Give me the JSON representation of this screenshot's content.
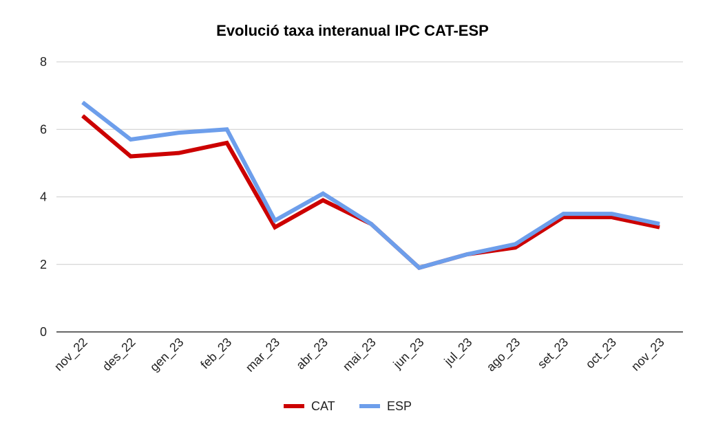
{
  "chart_data": {
    "type": "line",
    "title": "Evolució taxa interanual IPC CAT-ESP",
    "categories": [
      "nov_22",
      "des_22",
      "gen_23",
      "feb_23",
      "mar_23",
      "abr_23",
      "mai_23",
      "jun_23",
      "jul_23",
      "ago_23",
      "set_23",
      "oct_23",
      "nov_23"
    ],
    "series": [
      {
        "name": "CAT",
        "color": "#cc0000",
        "values": [
          6.4,
          5.2,
          5.3,
          5.6,
          3.1,
          3.9,
          3.2,
          1.9,
          2.3,
          2.5,
          3.4,
          3.4,
          3.1
        ]
      },
      {
        "name": "ESP",
        "color": "#6d9eeb",
        "values": [
          6.8,
          5.7,
          5.9,
          6.0,
          3.3,
          4.1,
          3.2,
          1.9,
          2.3,
          2.6,
          3.5,
          3.5,
          3.2
        ]
      }
    ],
    "ylim": [
      0,
      8
    ],
    "yticks": [
      "0",
      "2",
      "4",
      "6",
      "8"
    ],
    "xlabel": "",
    "ylabel": "",
    "grid": true,
    "legend_position": "bottom"
  }
}
